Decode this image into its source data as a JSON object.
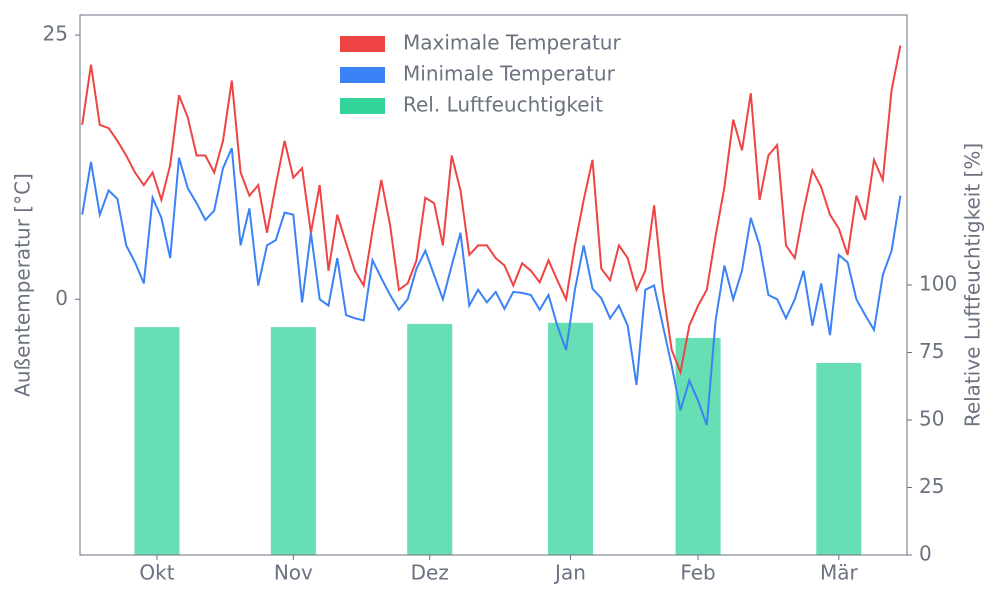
{
  "chart_data": {
    "type": "line",
    "x": [
      0,
      2,
      4,
      6,
      8,
      10,
      12,
      14,
      16,
      18,
      20,
      22,
      24,
      26,
      28,
      30,
      32,
      34,
      36,
      38,
      40,
      42,
      44,
      46,
      48,
      50,
      52,
      54,
      56,
      58,
      60,
      62,
      64,
      66,
      68,
      70,
      72,
      74,
      76,
      78,
      80,
      82,
      84,
      86,
      88,
      90,
      92,
      94,
      96,
      98,
      100,
      102,
      104,
      106,
      108,
      110,
      112,
      114,
      116,
      118,
      120,
      122,
      124,
      126,
      128,
      130,
      132,
      134,
      136,
      138,
      140,
      142,
      144,
      146,
      148,
      150,
      152,
      154,
      156,
      158,
      160,
      162,
      164,
      166,
      168,
      170,
      172,
      174,
      176,
      178,
      180,
      182,
      184,
      186
    ],
    "series": [
      {
        "name": "Maximale Temperatur",
        "color": "#ef4444",
        "type": "line",
        "values": [
          16.5,
          22.2,
          16.5,
          16.2,
          15,
          13.6,
          12,
          10.8,
          12,
          9.4,
          12.7,
          19.3,
          17.2,
          13.6,
          13.6,
          12,
          15,
          20.7,
          12,
          9.8,
          10.8,
          6.3,
          10.8,
          15,
          11.5,
          12.4,
          6.3,
          10.8,
          2.7,
          8,
          5.3,
          2.7,
          1.3,
          6.5,
          11.3,
          7,
          0.9,
          1.5,
          3.7,
          9.6,
          9.1,
          5.1,
          13.6,
          10.3,
          4.2,
          5.1,
          5.1,
          3.9,
          3.2,
          1.3,
          3.4,
          2.7,
          1.6,
          3.7,
          1.8,
          0,
          5.1,
          9.4,
          13.2,
          2.9,
          1.8,
          5.1,
          3.9,
          0.9,
          2.7,
          8.9,
          0.9,
          -4.8,
          -6.9,
          -2.5,
          -0.6,
          0.9,
          6,
          10.6,
          17,
          14.1,
          19.5,
          9.4,
          13.6,
          14.6,
          5.1,
          3.9,
          8.4,
          12.2,
          10.6,
          8,
          6.7,
          4.2,
          9.8,
          7.5,
          13.2,
          11.3,
          19.8,
          24
        ]
      },
      {
        "name": "Minimale Temperatur",
        "color": "#3b82f6",
        "type": "line",
        "values": [
          8,
          13,
          8,
          10.3,
          9.5,
          5.1,
          3.5,
          1.5,
          9.6,
          7.7,
          3.9,
          13.4,
          10.5,
          9.1,
          7.5,
          8.4,
          12.4,
          14.3,
          5.1,
          8.6,
          1.3,
          5.1,
          5.6,
          8.2,
          8,
          -0.3,
          6.3,
          0,
          -0.6,
          3.9,
          -1.5,
          -1.8,
          -2,
          3.7,
          2,
          0.4,
          -1,
          0,
          2.9,
          4.6,
          2.3,
          0,
          3.2,
          6.3,
          -0.6,
          0.9,
          -0.3,
          0.7,
          -0.9,
          0.7,
          0.6,
          0.4,
          -1,
          0.4,
          -2.5,
          -4.8,
          0.9,
          5.1,
          1,
          0.1,
          -1.8,
          -0.6,
          -2.5,
          -8.1,
          0.9,
          1.3,
          -2.5,
          -6.3,
          -10.5,
          -7.7,
          -9.6,
          -11.9,
          -2,
          3.2,
          0,
          2.7,
          7.7,
          5.1,
          0.4,
          0,
          -1.8,
          0,
          2.7,
          -2.5,
          1.5,
          -3.4,
          4.2,
          3.5,
          0,
          -1.5,
          -2.9,
          2.3,
          4.6,
          9.8
        ]
      },
      {
        "name": "Rel. Luftfeuchtigkeit",
        "color": "#34d399",
        "type": "bar",
        "axis": "y2",
        "x": [
          17,
          48,
          79,
          111,
          140,
          172
        ],
        "values": [
          84.4,
          84.4,
          85.6,
          86,
          80.4,
          71.1
        ]
      }
    ],
    "xlim": [
      -0.5,
      187.5
    ],
    "xticks": [
      {
        "value": 17,
        "label": "Okt"
      },
      {
        "value": 48,
        "label": "Nov"
      },
      {
        "value": 79,
        "label": "Dez"
      },
      {
        "value": 111,
        "label": "Jan"
      },
      {
        "value": 140,
        "label": "Feb"
      },
      {
        "value": 172,
        "label": "Mär"
      }
    ],
    "ylim": [
      -24.2,
      26.9
    ],
    "yticks": [
      0,
      25
    ],
    "y2lim": [
      0,
      200
    ],
    "y2ticks": [
      0,
      25,
      50,
      75,
      100
    ],
    "ylabel": "Außentemperatur [°C]",
    "y2label": "Relative Luftfeuchtigkeit [%]",
    "legend": "top"
  }
}
